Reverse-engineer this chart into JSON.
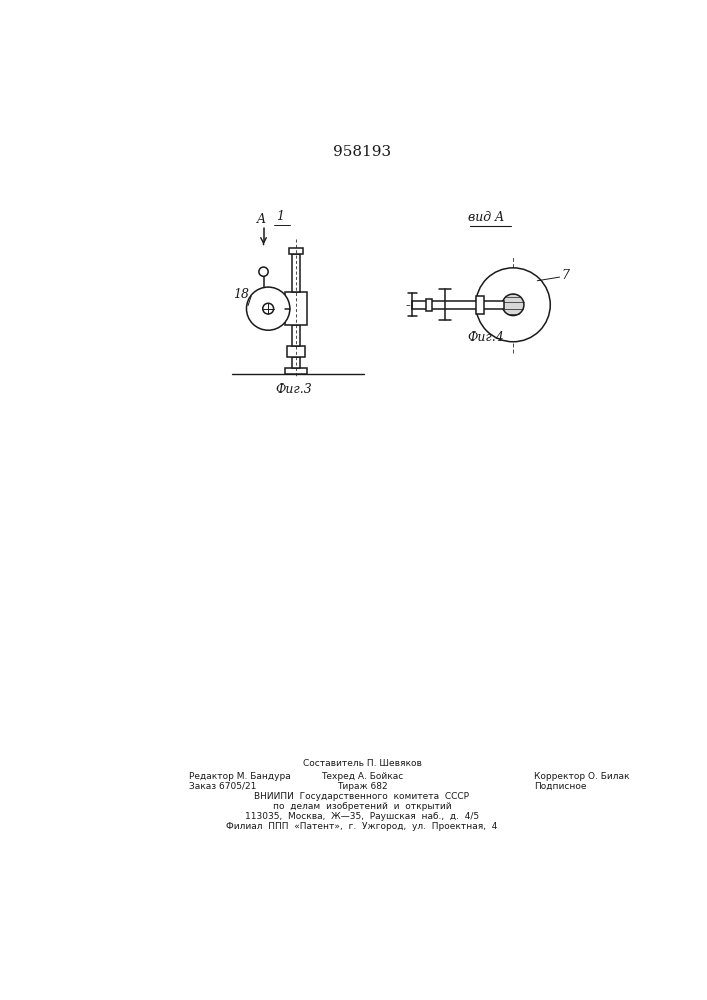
{
  "title": "958193",
  "title_fontsize": 12,
  "bg_color": "#ffffff",
  "line_color": "#1a1a1a",
  "fig3_label": "Фиг.3",
  "fig4_label": "Фиг.4",
  "vidA_label": "вид A",
  "label_A": "A",
  "label_1": "1",
  "label_18": "18",
  "label_7": "7",
  "footer_line0": "Составитель П. Шевяков",
  "footer_line1_left": "Редактор М. Бандура",
  "footer_line1_mid": "Техред А. Бойкас",
  "footer_line1_right": "Корректор О. Билак",
  "footer_line2_left": "Заказ 6705/21",
  "footer_line2_mid": "Тираж 682",
  "footer_line2_right": "Подписное",
  "footer_line3": "ВНИИПИ  Государственного  комитета  СССР",
  "footer_line4": "по  делам  изобретений  и  открытий",
  "footer_line5": "113035,  Москва,  Ж—35,  Раушская  наб.,  д.  4/5",
  "footer_line6": "Филиал  ППП  «Патент»,  г.  Ужгород,  ул.  Проектная,  4"
}
